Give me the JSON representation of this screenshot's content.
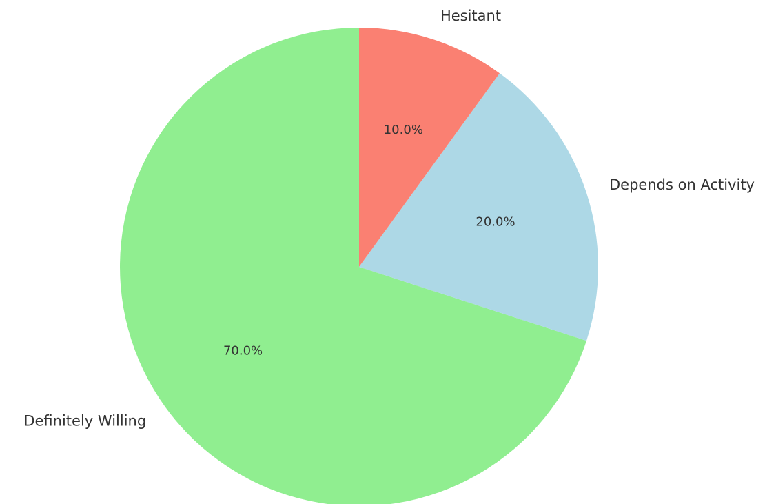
{
  "chart_data": {
    "type": "pie",
    "categories": [
      "Definitely Willing",
      "Depends on Activity",
      "Hesitant"
    ],
    "values": [
      70,
      20,
      10
    ],
    "value_labels": [
      "70.0%",
      "20.0%",
      "10.0%"
    ],
    "colors": [
      "#90ee90",
      "#add8e6",
      "#fa8072"
    ]
  }
}
